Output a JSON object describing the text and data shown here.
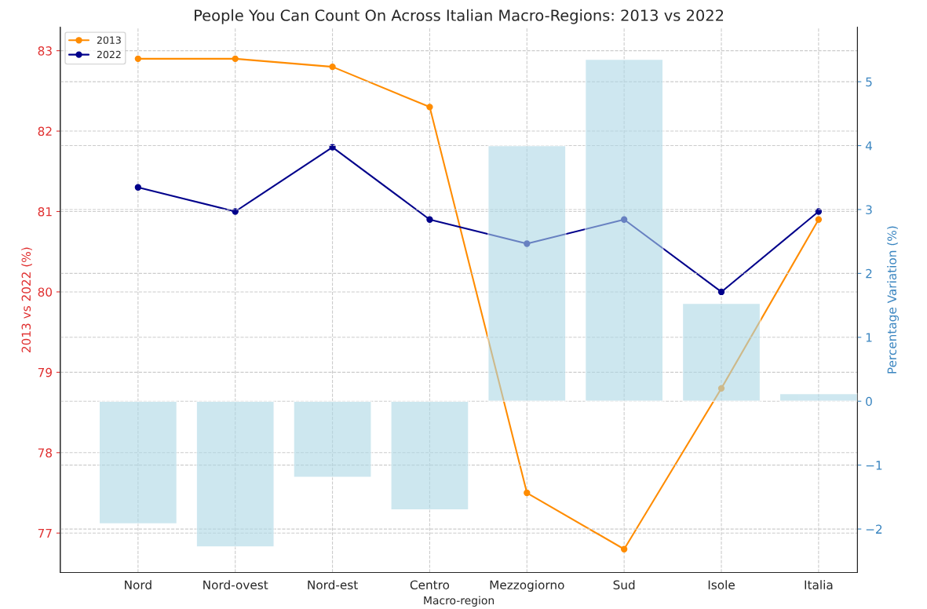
{
  "chart_data": {
    "type": "line",
    "title": "People You Can Count On Across Italian Macro-Regions: 2013 vs 2022",
    "xlabel": "Macro-region",
    "ylabel": "2013 vs 2022 (%)",
    "y2label": "Percentage Variation (%)",
    "categories": [
      "Nord",
      "Nord-ovest",
      "Nord-est",
      "Centro",
      "Mezzogiorno",
      "Sud",
      "Isole",
      "Italia"
    ],
    "series": [
      {
        "type": "bar",
        "axis": "y2",
        "color": "#add8e6",
        "values": [
          -1.92,
          -2.28,
          -1.19,
          -1.7,
          4.0,
          5.35,
          1.53,
          0.12
        ]
      },
      {
        "name": "2013",
        "color": "#ff8c00",
        "values": [
          82.9,
          82.9,
          82.8,
          82.3,
          77.5,
          76.8,
          78.8,
          80.9
        ]
      },
      {
        "name": "2022",
        "color": "#00008b",
        "values": [
          81.3,
          81.0,
          81.8,
          80.9,
          80.6,
          80.9,
          80.0,
          81.0
        ]
      }
    ],
    "ylim": [
      76.51,
      83.29
    ],
    "yticks": [
      77,
      78,
      79,
      80,
      81,
      82,
      83
    ],
    "y2lim": [
      -2.68,
      5.85
    ],
    "y2ticks": [
      {
        "value": -2,
        "label": "−2"
      },
      {
        "value": -1,
        "label": "−1"
      },
      0,
      1,
      2,
      3,
      4,
      5
    ],
    "grid": true,
    "legend": "top left",
    "marker": "circle",
    "line_style": "solid"
  }
}
